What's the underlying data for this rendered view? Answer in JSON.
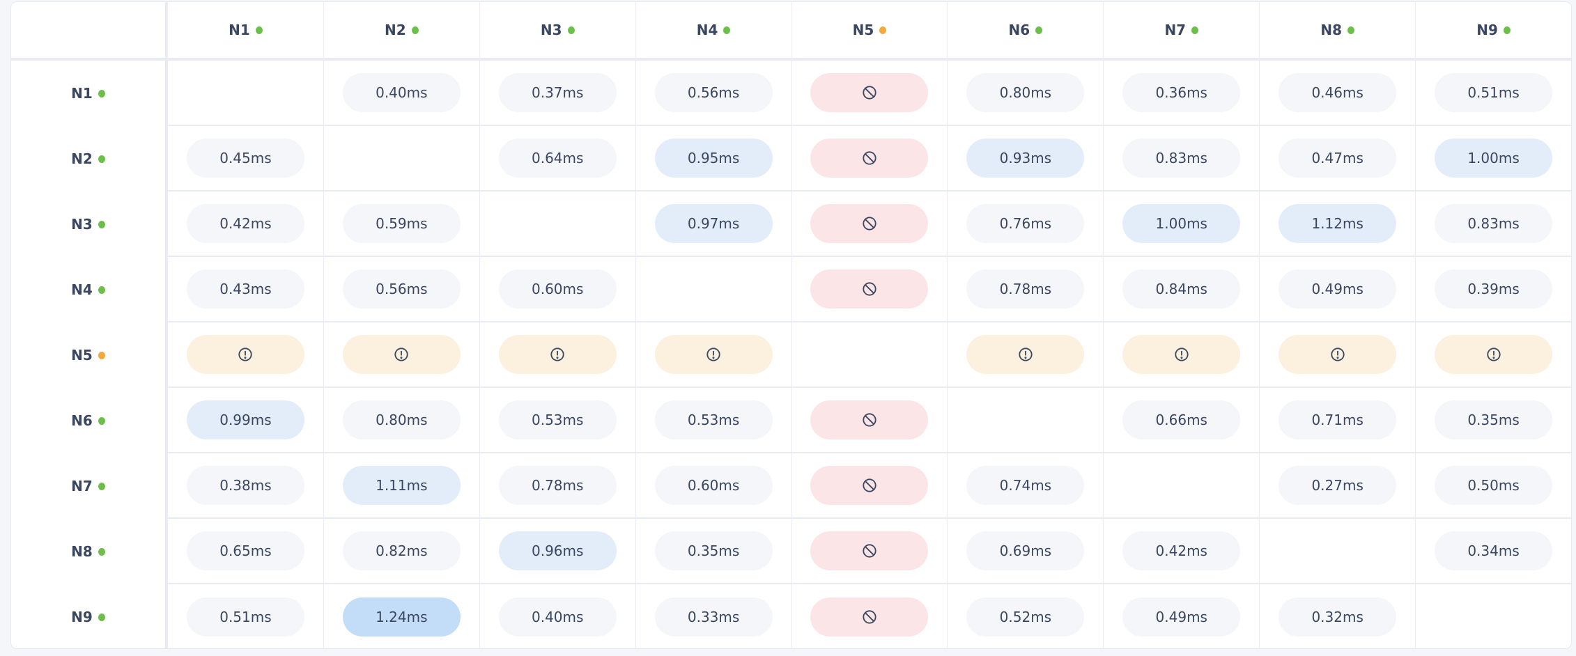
{
  "colors": {
    "status_ok": "#6cc04a",
    "status_warn": "#f5a93b",
    "tone_normal": "#f4f6fa",
    "tone_elevated": "#e3edf9",
    "tone_high": "#c3ddf8",
    "tone_blocked": "#fbe5e7",
    "tone_warning": "#fcf1de"
  },
  "nodes": [
    {
      "label": "N1",
      "status": "ok"
    },
    {
      "label": "N2",
      "status": "ok"
    },
    {
      "label": "N3",
      "status": "ok"
    },
    {
      "label": "N4",
      "status": "ok"
    },
    {
      "label": "N5",
      "status": "warn"
    },
    {
      "label": "N6",
      "status": "ok"
    },
    {
      "label": "N7",
      "status": "ok"
    },
    {
      "label": "N8",
      "status": "ok"
    },
    {
      "label": "N9",
      "status": "ok"
    }
  ],
  "icons": {
    "blocked": "ban-icon",
    "warning": "alert-circle-icon"
  },
  "matrix": [
    [
      null,
      "0.40ms",
      "0.37ms",
      "0.56ms",
      "blocked",
      "0.80ms",
      "0.36ms",
      "0.46ms",
      "0.51ms"
    ],
    [
      "0.45ms",
      null,
      "0.64ms",
      "0.95ms",
      "blocked",
      "0.93ms",
      "0.83ms",
      "0.47ms",
      "1.00ms"
    ],
    [
      "0.42ms",
      "0.59ms",
      null,
      "0.97ms",
      "blocked",
      "0.76ms",
      "1.00ms",
      "1.12ms",
      "0.83ms"
    ],
    [
      "0.43ms",
      "0.56ms",
      "0.60ms",
      null,
      "blocked",
      "0.78ms",
      "0.84ms",
      "0.49ms",
      "0.39ms"
    ],
    [
      "warning",
      "warning",
      "warning",
      "warning",
      null,
      "warning",
      "warning",
      "warning",
      "warning"
    ],
    [
      "0.99ms",
      "0.80ms",
      "0.53ms",
      "0.53ms",
      "blocked",
      null,
      "0.66ms",
      "0.71ms",
      "0.35ms"
    ],
    [
      "0.38ms",
      "1.11ms",
      "0.78ms",
      "0.60ms",
      "blocked",
      "0.74ms",
      null,
      "0.27ms",
      "0.50ms"
    ],
    [
      "0.65ms",
      "0.82ms",
      "0.96ms",
      "0.35ms",
      "blocked",
      "0.69ms",
      "0.42ms",
      null,
      "0.34ms"
    ],
    [
      "0.51ms",
      "1.24ms",
      "0.40ms",
      "0.33ms",
      "blocked",
      "0.52ms",
      "0.49ms",
      "0.32ms",
      null
    ]
  ],
  "tones": [
    [
      null,
      "normal",
      "normal",
      "normal",
      "blocked",
      "normal",
      "normal",
      "normal",
      "normal"
    ],
    [
      "normal",
      null,
      "normal",
      "elevated",
      "blocked",
      "elevated",
      "normal",
      "normal",
      "elevated"
    ],
    [
      "normal",
      "normal",
      null,
      "elevated",
      "blocked",
      "normal",
      "elevated",
      "elevated",
      "normal"
    ],
    [
      "normal",
      "normal",
      "normal",
      null,
      "blocked",
      "normal",
      "normal",
      "normal",
      "normal"
    ],
    [
      "warning",
      "warning",
      "warning",
      "warning",
      null,
      "warning",
      "warning",
      "warning",
      "warning"
    ],
    [
      "elevated",
      "normal",
      "normal",
      "normal",
      "blocked",
      null,
      "normal",
      "normal",
      "normal"
    ],
    [
      "normal",
      "elevated",
      "normal",
      "normal",
      "blocked",
      "normal",
      null,
      "normal",
      "normal"
    ],
    [
      "normal",
      "normal",
      "elevated",
      "normal",
      "blocked",
      "normal",
      "normal",
      null,
      "normal"
    ],
    [
      "normal",
      "high",
      "normal",
      "normal",
      "blocked",
      "normal",
      "normal",
      "normal",
      null
    ]
  ]
}
